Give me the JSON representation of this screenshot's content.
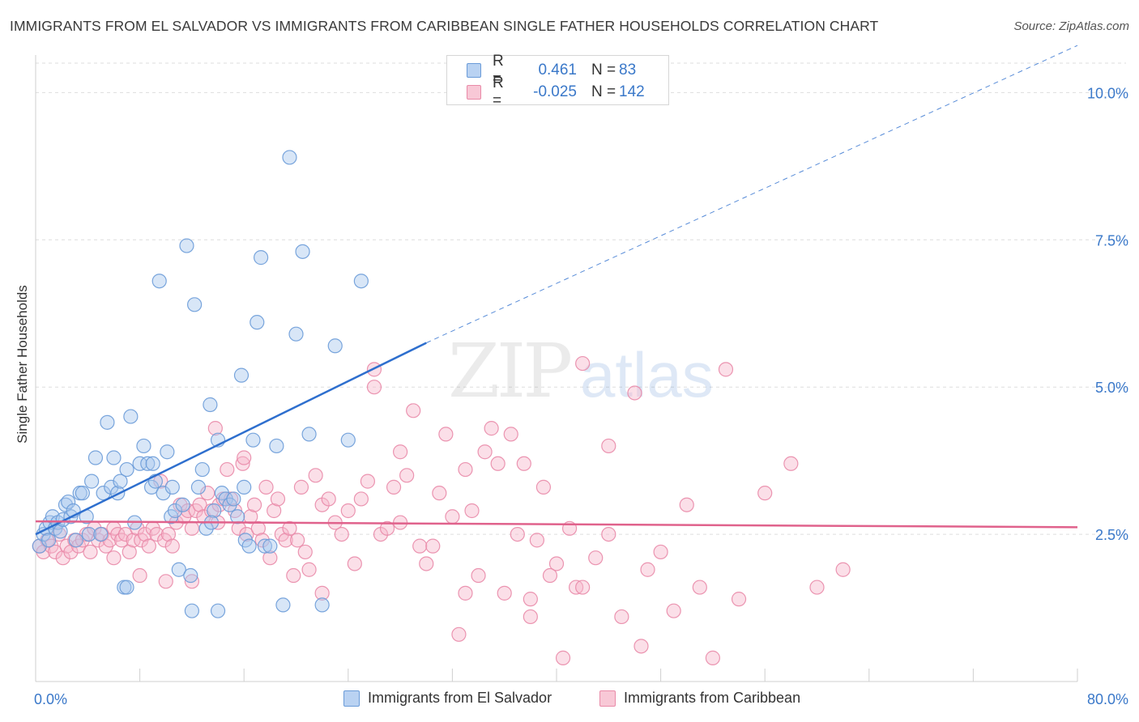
{
  "title": "IMMIGRANTS FROM EL SALVADOR VS IMMIGRANTS FROM CARIBBEAN SINGLE FATHER HOUSEHOLDS CORRELATION CHART",
  "source": "Source: ZipAtlas.com",
  "watermark": {
    "part1": "ZIP",
    "part2": "atlas"
  },
  "legend": {
    "r_label": "R =",
    "n_label": "N =",
    "series": [
      {
        "r": "0.461",
        "n": "83"
      },
      {
        "r": "-0.025",
        "n": "142"
      }
    ]
  },
  "bottom_legend": [
    "Immigrants from El Salvador",
    "Immigrants from Caribbean"
  ],
  "colors": {
    "blue_fill": "#a9c7ee",
    "blue_stroke": "#6a9bd8",
    "blue_line": "#2e6fce",
    "pink_fill": "#f6b9cb",
    "pink_stroke": "#e98aa8",
    "pink_line": "#e0628c",
    "tick_text": "#3a78c9",
    "grid": "#dedede"
  },
  "chart_data": {
    "type": "scatter",
    "title": "IMMIGRANTS FROM EL SALVADOR VS IMMIGRANTS FROM CARIBBEAN SINGLE FATHER HOUSEHOLDS CORRELATION CHART",
    "xlabel": "",
    "ylabel": "Single Father Households",
    "xlim": [
      0,
      80
    ],
    "ylim": [
      0,
      10.5
    ],
    "x_tick_labels": [
      "0.0%",
      "80.0%"
    ],
    "y_ticks": [
      2.5,
      5.0,
      7.5,
      10.0
    ],
    "y_tick_labels": [
      "2.5%",
      "5.0%",
      "7.5%",
      "10.0%"
    ],
    "grid": true,
    "legend_position": "top-center",
    "series": [
      {
        "name": "Immigrants from El Salvador",
        "r": 0.461,
        "n": 83,
        "trend": {
          "x0": 0,
          "y0": 2.5,
          "x1": 30,
          "y1": 5.75,
          "dashed_to_x": 80,
          "dashed_to_y": 11.2
        },
        "points": [
          [
            0.3,
            2.3
          ],
          [
            0.6,
            2.5
          ],
          [
            0.8,
            2.6
          ],
          [
            1.0,
            2.4
          ],
          [
            1.1,
            2.7
          ],
          [
            1.3,
            2.8
          ],
          [
            1.5,
            2.6
          ],
          [
            1.7,
            2.7
          ],
          [
            1.9,
            2.55
          ],
          [
            2.1,
            2.75
          ],
          [
            2.3,
            3.0
          ],
          [
            2.5,
            3.05
          ],
          [
            2.7,
            2.8
          ],
          [
            2.9,
            2.9
          ],
          [
            3.1,
            2.4
          ],
          [
            3.4,
            3.2
          ],
          [
            3.6,
            3.2
          ],
          [
            3.9,
            2.8
          ],
          [
            4.1,
            2.5
          ],
          [
            4.3,
            3.4
          ],
          [
            4.6,
            3.8
          ],
          [
            5.0,
            2.5
          ],
          [
            5.2,
            3.2
          ],
          [
            5.5,
            4.4
          ],
          [
            5.8,
            3.3
          ],
          [
            6.0,
            3.8
          ],
          [
            6.3,
            3.2
          ],
          [
            6.5,
            3.4
          ],
          [
            6.8,
            1.6
          ],
          [
            7.0,
            3.6
          ],
          [
            7.3,
            4.5
          ],
          [
            7.6,
            2.7
          ],
          [
            8.0,
            3.7
          ],
          [
            8.3,
            4.0
          ],
          [
            8.6,
            3.7
          ],
          [
            8.9,
            3.3
          ],
          [
            9.2,
            3.4
          ],
          [
            9.5,
            6.8
          ],
          [
            9.8,
            3.2
          ],
          [
            10.1,
            3.9
          ],
          [
            10.4,
            2.8
          ],
          [
            10.7,
            2.9
          ],
          [
            11.0,
            1.9
          ],
          [
            11.3,
            3.0
          ],
          [
            11.6,
            7.4
          ],
          [
            11.9,
            1.8
          ],
          [
            12.2,
            6.4
          ],
          [
            12.5,
            3.3
          ],
          [
            12.8,
            3.6
          ],
          [
            13.1,
            2.6
          ],
          [
            13.4,
            4.7
          ],
          [
            13.7,
            2.9
          ],
          [
            14.0,
            4.1
          ],
          [
            14.3,
            3.2
          ],
          [
            14.6,
            3.1
          ],
          [
            14.9,
            3.0
          ],
          [
            15.2,
            3.1
          ],
          [
            15.5,
            2.8
          ],
          [
            15.8,
            5.2
          ],
          [
            16.1,
            2.4
          ],
          [
            16.4,
            2.3
          ],
          [
            16.7,
            4.1
          ],
          [
            17.0,
            6.1
          ],
          [
            17.3,
            7.2
          ],
          [
            17.6,
            2.3
          ],
          [
            18.0,
            2.3
          ],
          [
            18.5,
            4.0
          ],
          [
            19.0,
            1.3
          ],
          [
            19.5,
            8.9
          ],
          [
            20.0,
            5.9
          ],
          [
            20.5,
            7.3
          ],
          [
            21.0,
            4.2
          ],
          [
            22.0,
            1.3
          ],
          [
            23.0,
            5.7
          ],
          [
            24.0,
            4.1
          ],
          [
            25.0,
            6.8
          ],
          [
            12.0,
            1.2
          ],
          [
            14.0,
            1.2
          ],
          [
            16.0,
            3.3
          ],
          [
            9.0,
            3.7
          ],
          [
            7.0,
            1.6
          ],
          [
            10.5,
            3.3
          ],
          [
            13.5,
            2.7
          ]
        ]
      },
      {
        "name": "Immigrants from Caribbean",
        "r": -0.025,
        "n": 142,
        "trend": {
          "x0": 0,
          "y0": 2.72,
          "x1": 80,
          "y1": 2.62
        },
        "points": [
          [
            0.3,
            2.3
          ],
          [
            0.6,
            2.2
          ],
          [
            0.9,
            2.4
          ],
          [
            1.2,
            2.3
          ],
          [
            1.5,
            2.2
          ],
          [
            1.8,
            2.5
          ],
          [
            2.1,
            2.1
          ],
          [
            2.4,
            2.3
          ],
          [
            2.7,
            2.2
          ],
          [
            3.0,
            2.4
          ],
          [
            3.3,
            2.3
          ],
          [
            3.6,
            2.4
          ],
          [
            3.9,
            2.5
          ],
          [
            4.2,
            2.2
          ],
          [
            4.5,
            2.6
          ],
          [
            4.8,
            2.4
          ],
          [
            5.1,
            2.5
          ],
          [
            5.4,
            2.3
          ],
          [
            5.7,
            2.4
          ],
          [
            6.0,
            2.6
          ],
          [
            6.3,
            2.5
          ],
          [
            6.6,
            2.4
          ],
          [
            6.9,
            2.5
          ],
          [
            7.2,
            2.2
          ],
          [
            7.5,
            2.4
          ],
          [
            7.8,
            2.6
          ],
          [
            8.1,
            2.4
          ],
          [
            8.4,
            2.5
          ],
          [
            8.7,
            2.3
          ],
          [
            9.0,
            2.6
          ],
          [
            9.3,
            2.5
          ],
          [
            9.6,
            3.4
          ],
          [
            9.9,
            2.4
          ],
          [
            10.2,
            2.5
          ],
          [
            10.5,
            2.3
          ],
          [
            10.8,
            2.7
          ],
          [
            11.1,
            3.0
          ],
          [
            11.4,
            2.8
          ],
          [
            11.7,
            2.9
          ],
          [
            12.0,
            2.6
          ],
          [
            12.3,
            2.9
          ],
          [
            12.6,
            3.0
          ],
          [
            12.9,
            2.8
          ],
          [
            13.2,
            3.2
          ],
          [
            13.5,
            2.9
          ],
          [
            13.8,
            4.3
          ],
          [
            14.1,
            3.0
          ],
          [
            14.4,
            3.1
          ],
          [
            14.7,
            3.6
          ],
          [
            15.0,
            3.1
          ],
          [
            15.3,
            2.9
          ],
          [
            15.6,
            2.6
          ],
          [
            15.9,
            3.7
          ],
          [
            16.2,
            2.5
          ],
          [
            16.5,
            2.8
          ],
          [
            16.8,
            3.0
          ],
          [
            17.1,
            2.6
          ],
          [
            17.4,
            2.4
          ],
          [
            17.7,
            3.3
          ],
          [
            18.0,
            2.1
          ],
          [
            18.3,
            2.9
          ],
          [
            18.6,
            3.1
          ],
          [
            18.9,
            2.5
          ],
          [
            19.2,
            2.4
          ],
          [
            19.5,
            2.6
          ],
          [
            19.8,
            1.8
          ],
          [
            20.1,
            2.4
          ],
          [
            20.4,
            3.3
          ],
          [
            20.7,
            2.2
          ],
          [
            21.0,
            1.9
          ],
          [
            21.5,
            3.5
          ],
          [
            22.0,
            3.0
          ],
          [
            22.5,
            3.1
          ],
          [
            23.0,
            2.7
          ],
          [
            23.5,
            2.5
          ],
          [
            24.0,
            2.9
          ],
          [
            24.5,
            2.0
          ],
          [
            25.0,
            3.1
          ],
          [
            25.5,
            3.4
          ],
          [
            26.0,
            5.0
          ],
          [
            26.5,
            2.5
          ],
          [
            27.0,
            2.6
          ],
          [
            27.5,
            3.3
          ],
          [
            28.0,
            3.9
          ],
          [
            28.5,
            3.5
          ],
          [
            29.0,
            4.6
          ],
          [
            29.5,
            2.3
          ],
          [
            30.0,
            2.0
          ],
          [
            30.5,
            2.3
          ],
          [
            31.0,
            3.2
          ],
          [
            31.5,
            4.2
          ],
          [
            32.0,
            2.8
          ],
          [
            32.5,
            0.8
          ],
          [
            33.0,
            3.6
          ],
          [
            33.5,
            2.9
          ],
          [
            34.0,
            1.8
          ],
          [
            34.5,
            3.9
          ],
          [
            35.0,
            4.3
          ],
          [
            35.5,
            3.7
          ],
          [
            36.0,
            1.5
          ],
          [
            36.5,
            4.2
          ],
          [
            37.0,
            2.5
          ],
          [
            37.5,
            3.7
          ],
          [
            38.0,
            1.1
          ],
          [
            38.5,
            2.4
          ],
          [
            39.0,
            3.3
          ],
          [
            39.5,
            1.8
          ],
          [
            40.0,
            2.0
          ],
          [
            40.5,
            0.4
          ],
          [
            41.0,
            2.6
          ],
          [
            41.5,
            1.6
          ],
          [
            42.0,
            5.4
          ],
          [
            43.0,
            2.1
          ],
          [
            44.0,
            4.0
          ],
          [
            45.0,
            1.1
          ],
          [
            46.0,
            4.9
          ],
          [
            46.5,
            0.6
          ],
          [
            47.0,
            1.9
          ],
          [
            48.0,
            2.2
          ],
          [
            49.0,
            1.2
          ],
          [
            50.0,
            3.0
          ],
          [
            51.0,
            1.6
          ],
          [
            52.0,
            0.4
          ],
          [
            53.0,
            5.3
          ],
          [
            54.0,
            1.4
          ],
          [
            56.0,
            3.2
          ],
          [
            58.0,
            3.7
          ],
          [
            60.0,
            1.6
          ],
          [
            62.0,
            1.9
          ],
          [
            22.0,
            1.5
          ],
          [
            26.0,
            5.3
          ],
          [
            28.0,
            2.7
          ],
          [
            33.0,
            1.5
          ],
          [
            38.0,
            1.4
          ],
          [
            42.0,
            1.6
          ],
          [
            44.0,
            2.5
          ],
          [
            16.0,
            3.8
          ],
          [
            12.0,
            1.7
          ],
          [
            10.0,
            1.7
          ],
          [
            8.0,
            1.8
          ],
          [
            6.0,
            2.1
          ],
          [
            14.0,
            2.7
          ]
        ]
      }
    ]
  }
}
